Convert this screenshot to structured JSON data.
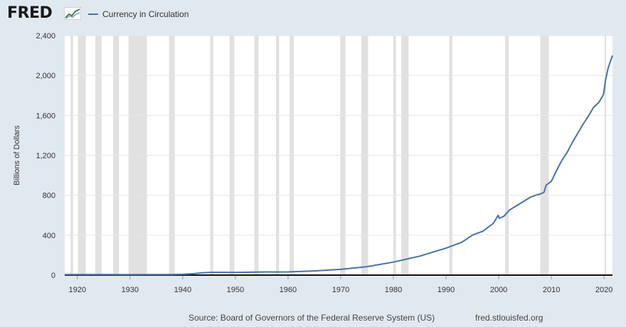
{
  "header": {
    "logo_text": "FRED",
    "legend_label": "Currency in Circulation"
  },
  "footer": {
    "source": "Source: Board of Governors of the Federal Reserve System (US)",
    "url": "fred.stlouisfed.org"
  },
  "colors": {
    "line": "#4572a7",
    "recession": "#e1e1e1",
    "background": "#e1e9f0",
    "plot_background": "#ffffff"
  },
  "chart_data": {
    "type": "line",
    "ylabel": "Billions of Dollars",
    "xlim": [
      1917.6,
      2021.6
    ],
    "ylim": [
      0,
      2400
    ],
    "x_ticks": [
      1920,
      1930,
      1940,
      1950,
      1960,
      1970,
      1980,
      1990,
      2000,
      2010,
      2020
    ],
    "y_ticks": [
      0,
      400,
      800,
      1200,
      1600,
      2000,
      2400
    ],
    "y_tick_labels": [
      "0",
      "400",
      "800",
      "1,200",
      "1,600",
      "2,000",
      "2,400"
    ],
    "grid": true,
    "legend": "top-left",
    "recessions": [
      [
        1918.7,
        1919.2
      ],
      [
        1920.1,
        1921.6
      ],
      [
        1923.4,
        1924.6
      ],
      [
        1926.8,
        1927.9
      ],
      [
        1929.7,
        1933.2
      ],
      [
        1937.4,
        1938.5
      ],
      [
        1945.2,
        1945.8
      ],
      [
        1948.9,
        1949.8
      ],
      [
        1953.6,
        1954.4
      ],
      [
        1957.7,
        1958.3
      ],
      [
        1960.3,
        1961.1
      ],
      [
        1969.9,
        1970.9
      ],
      [
        1973.9,
        1975.2
      ],
      [
        1980.0,
        1980.5
      ],
      [
        1981.5,
        1982.9
      ],
      [
        1990.6,
        1991.2
      ],
      [
        2001.2,
        2001.9
      ],
      [
        2007.9,
        2009.5
      ],
      [
        2020.1,
        2020.4
      ]
    ],
    "series": [
      {
        "name": "Currency in Circulation",
        "x": [
          1917.6,
          1920,
          1925,
          1930,
          1935,
          1938,
          1940,
          1942,
          1944,
          1945.5,
          1948,
          1950,
          1955,
          1960,
          1965,
          1970,
          1975,
          1980,
          1985,
          1990,
          1993,
          1995,
          1997,
          1999,
          1999.9,
          2000.1,
          2001,
          2002,
          2004,
          2006,
          2007,
          2008,
          2008.6,
          2009,
          2010,
          2011,
          2012,
          2013,
          2014,
          2015,
          2016,
          2017,
          2018,
          2019,
          2019.9,
          2020.3,
          2020.8,
          2021.6
        ],
        "y": [
          5,
          5,
          5,
          4,
          5,
          6,
          8,
          14,
          24,
          28,
          28,
          27,
          31,
          32,
          42,
          58,
          85,
          130,
          190,
          270,
          330,
          400,
          440,
          520,
          600,
          570,
          590,
          650,
          715,
          780,
          800,
          815,
          830,
          900,
          940,
          1050,
          1150,
          1230,
          1330,
          1420,
          1510,
          1590,
          1680,
          1730,
          1810,
          1960,
          2080,
          2200
        ]
      }
    ]
  }
}
